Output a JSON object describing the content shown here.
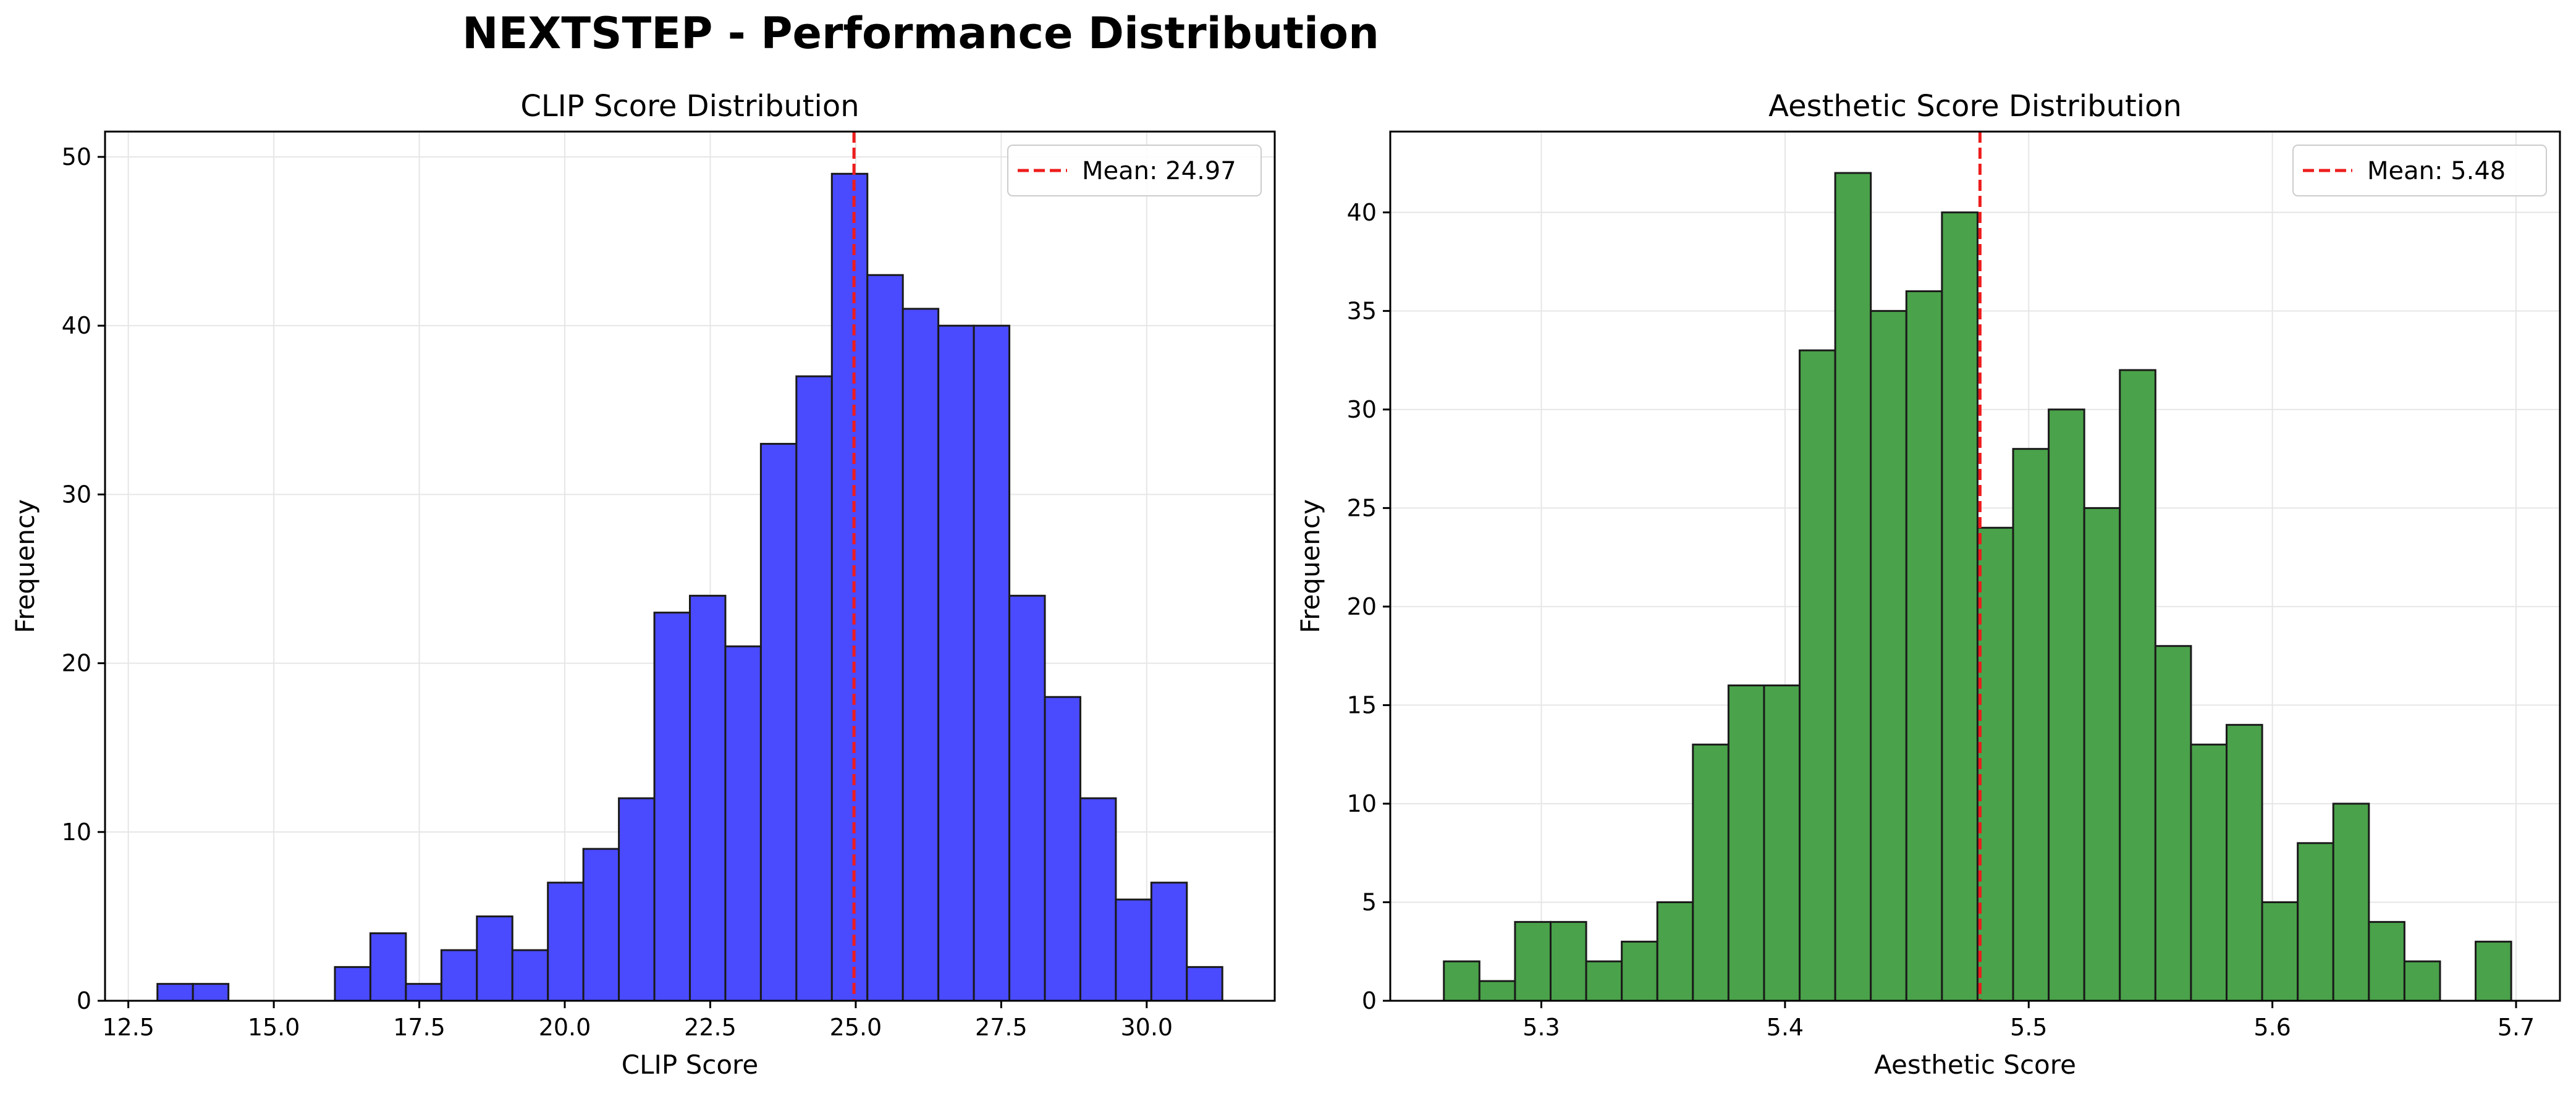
{
  "suptitle": "NEXTSTEP - Performance Distribution",
  "colors": {
    "clip_bar": "#4a4aff",
    "aesthetic_bar": "#4aa24a",
    "bar_edge": "#1a1a1a",
    "mean_line": "#ee1c1c",
    "grid": "#e6e6e6"
  },
  "chart_data": [
    {
      "type": "bar",
      "title": "CLIP Score Distribution",
      "xlabel": "CLIP Score",
      "ylabel": "Frequency",
      "xlim": [
        12.1,
        32.2
      ],
      "ylim": [
        0,
        51.5
      ],
      "xticks": [
        12.5,
        15.0,
        17.5,
        20.0,
        22.5,
        25.0,
        27.5,
        30.0
      ],
      "xtick_labels": [
        "12.5",
        "15.0",
        "17.5",
        "20.0",
        "22.5",
        "25.0",
        "27.5",
        "30.0"
      ],
      "yticks": [
        0,
        10,
        20,
        30,
        40,
        50
      ],
      "ytick_labels": [
        "0",
        "10",
        "20",
        "30",
        "40",
        "50"
      ],
      "grid": true,
      "bin_start": 13.0,
      "bin_width": 0.61,
      "values": [
        1,
        1,
        0,
        0,
        0,
        2,
        4,
        1,
        3,
        5,
        3,
        7,
        9,
        12,
        23,
        24,
        21,
        33,
        37,
        49,
        43,
        41,
        40,
        40,
        24,
        18,
        12,
        6,
        7,
        2
      ],
      "mean": 24.97,
      "legend": {
        "label": "Mean: 24.97",
        "placement": "top-right"
      }
    },
    {
      "type": "bar",
      "title": "Aesthetic Score Distribution",
      "xlabel": "Aesthetic Score",
      "ylabel": "Frequency",
      "xlim": [
        5.238,
        5.718
      ],
      "ylim": [
        0,
        44.1
      ],
      "xticks": [
        5.3,
        5.4,
        5.5,
        5.6,
        5.7
      ],
      "xtick_labels": [
        "5.3",
        "5.4",
        "5.5",
        "5.6",
        "5.7"
      ],
      "yticks": [
        0,
        5,
        10,
        15,
        20,
        25,
        30,
        35,
        40
      ],
      "ytick_labels": [
        "0",
        "5",
        "10",
        "15",
        "20",
        "25",
        "30",
        "35",
        "40"
      ],
      "grid": true,
      "bin_start": 5.26,
      "bin_width": 0.0146,
      "values": [
        2,
        1,
        4,
        4,
        2,
        3,
        5,
        13,
        16,
        16,
        33,
        42,
        35,
        36,
        40,
        24,
        28,
        30,
        25,
        32,
        18,
        13,
        14,
        5,
        8,
        10,
        4,
        2,
        0,
        3
      ],
      "mean": 5.48,
      "legend": {
        "label": "Mean: 5.48",
        "placement": "top-right"
      }
    }
  ]
}
